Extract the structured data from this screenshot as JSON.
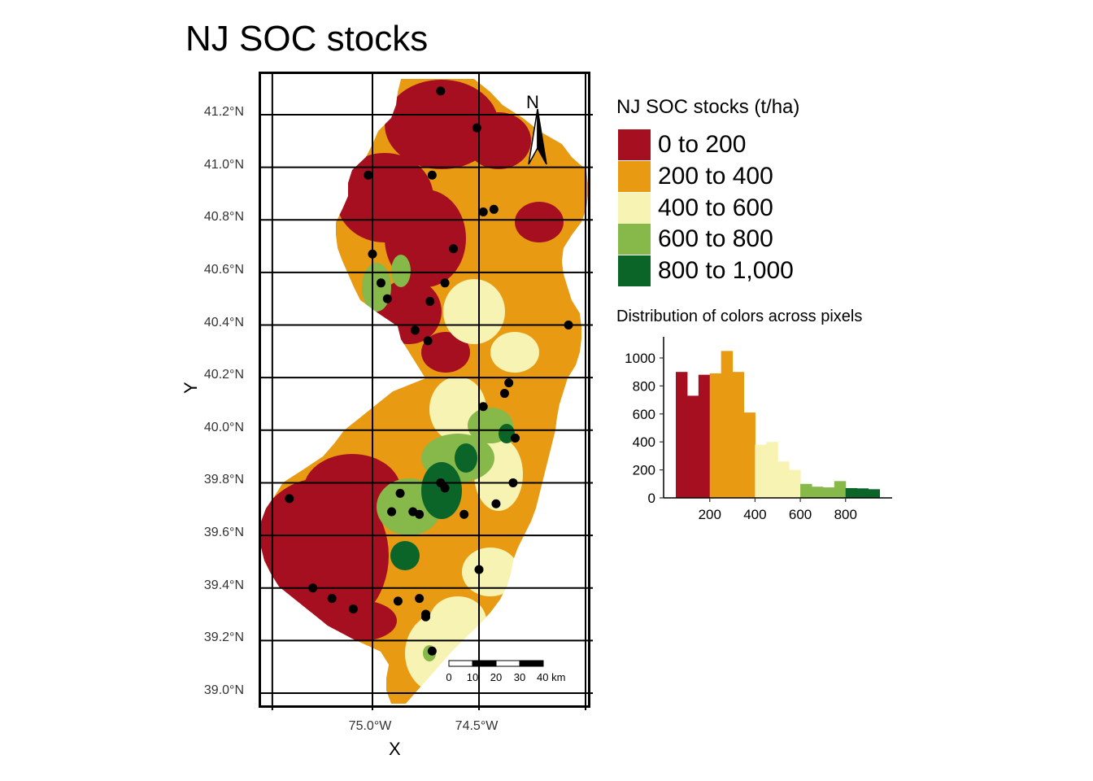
{
  "title": "NJ SOC stocks",
  "map": {
    "y_ticks": [
      {
        "label": "41.2°N",
        "lat": 41.2
      },
      {
        "label": "41.0°N",
        "lat": 41.0
      },
      {
        "label": "40.8°N",
        "lat": 40.8
      },
      {
        "label": "40.6°N",
        "lat": 40.6
      },
      {
        "label": "40.4°N",
        "lat": 40.4
      },
      {
        "label": "40.2°N",
        "lat": 40.2
      },
      {
        "label": "40.0°N",
        "lat": 40.0
      },
      {
        "label": "39.8°N",
        "lat": 39.8
      },
      {
        "label": "39.6°N",
        "lat": 39.6
      },
      {
        "label": "39.4°N",
        "lat": 39.4
      },
      {
        "label": "39.2°N",
        "lat": 39.2
      },
      {
        "label": "39.0°N",
        "lat": 39.0
      }
    ],
    "x_ticks": [
      {
        "label": "75.0°W",
        "lon": -75.0
      },
      {
        "label": "74.5°W",
        "lon": -74.5
      }
    ],
    "xlabel": "X",
    "ylabel": "Y",
    "north_label": "N",
    "scalebar_labels": [
      "0",
      "10",
      "20",
      "30",
      "40 km"
    ],
    "sample_points": [
      [
        -74.68,
        41.29
      ],
      [
        -74.51,
        41.15
      ],
      [
        -75.02,
        40.97
      ],
      [
        -74.72,
        40.97
      ],
      [
        -74.48,
        40.83
      ],
      [
        -74.43,
        40.84
      ],
      [
        -74.62,
        40.69
      ],
      [
        -75.0,
        40.67
      ],
      [
        -74.96,
        40.56
      ],
      [
        -74.66,
        40.56
      ],
      [
        -74.93,
        40.5
      ],
      [
        -74.73,
        40.49
      ],
      [
        -74.08,
        40.4
      ],
      [
        -74.8,
        40.38
      ],
      [
        -74.74,
        40.34
      ],
      [
        -74.36,
        40.18
      ],
      [
        -74.38,
        40.14
      ],
      [
        -74.48,
        40.09
      ],
      [
        -74.33,
        39.97
      ],
      [
        -74.68,
        39.8
      ],
      [
        -74.66,
        39.78
      ],
      [
        -74.34,
        39.8
      ],
      [
        -75.39,
        39.74
      ],
      [
        -74.87,
        39.76
      ],
      [
        -74.91,
        39.69
      ],
      [
        -74.81,
        39.69
      ],
      [
        -74.78,
        39.68
      ],
      [
        -74.57,
        39.68
      ],
      [
        -74.42,
        39.72
      ],
      [
        -74.5,
        39.47
      ],
      [
        -75.28,
        39.4
      ],
      [
        -75.19,
        39.36
      ],
      [
        -75.09,
        39.32
      ],
      [
        -74.88,
        39.35
      ],
      [
        -74.78,
        39.36
      ],
      [
        -74.75,
        39.3
      ],
      [
        -74.75,
        39.29
      ],
      [
        -74.72,
        39.16
      ]
    ]
  },
  "legend": {
    "title": "NJ SOC stocks (t/ha)",
    "items": [
      {
        "label": "0 to 200",
        "color": "#a50f20"
      },
      {
        "label": "200 to 400",
        "color": "#e99a13"
      },
      {
        "label": "400 to 600",
        "color": "#f7f3b2"
      },
      {
        "label": "600 to 800",
        "color": "#86b84a"
      },
      {
        "label": "800 to 1,000",
        "color": "#0b6428"
      }
    ]
  },
  "chart_data": {
    "type": "bar",
    "title": "Distribution of colors across pixels",
    "xlabel": "",
    "ylabel": "",
    "x_ticks": [
      200,
      400,
      600,
      800
    ],
    "y_ticks": [
      0,
      200,
      400,
      600,
      800,
      1000
    ],
    "xlim": [
      0,
      1000
    ],
    "ylim": [
      0,
      1100
    ],
    "bin_width": 50,
    "bins": [
      {
        "x": 75,
        "value": 900,
        "color": "#a50f20"
      },
      {
        "x": 125,
        "value": 730,
        "color": "#a50f20"
      },
      {
        "x": 175,
        "value": 880,
        "color": "#a50f20"
      },
      {
        "x": 225,
        "value": 890,
        "color": "#e99a13"
      },
      {
        "x": 275,
        "value": 1050,
        "color": "#e99a13"
      },
      {
        "x": 325,
        "value": 900,
        "color": "#e99a13"
      },
      {
        "x": 375,
        "value": 610,
        "color": "#e99a13"
      },
      {
        "x": 425,
        "value": 380,
        "color": "#f7f3b2"
      },
      {
        "x": 475,
        "value": 400,
        "color": "#f7f3b2"
      },
      {
        "x": 525,
        "value": 260,
        "color": "#f7f3b2"
      },
      {
        "x": 575,
        "value": 200,
        "color": "#f7f3b2"
      },
      {
        "x": 625,
        "value": 100,
        "color": "#86b84a"
      },
      {
        "x": 675,
        "value": 80,
        "color": "#86b84a"
      },
      {
        "x": 725,
        "value": 75,
        "color": "#86b84a"
      },
      {
        "x": 775,
        "value": 120,
        "color": "#86b84a"
      },
      {
        "x": 825,
        "value": 70,
        "color": "#0b6428"
      },
      {
        "x": 875,
        "value": 68,
        "color": "#0b6428"
      },
      {
        "x": 925,
        "value": 62,
        "color": "#0b6428"
      }
    ]
  }
}
